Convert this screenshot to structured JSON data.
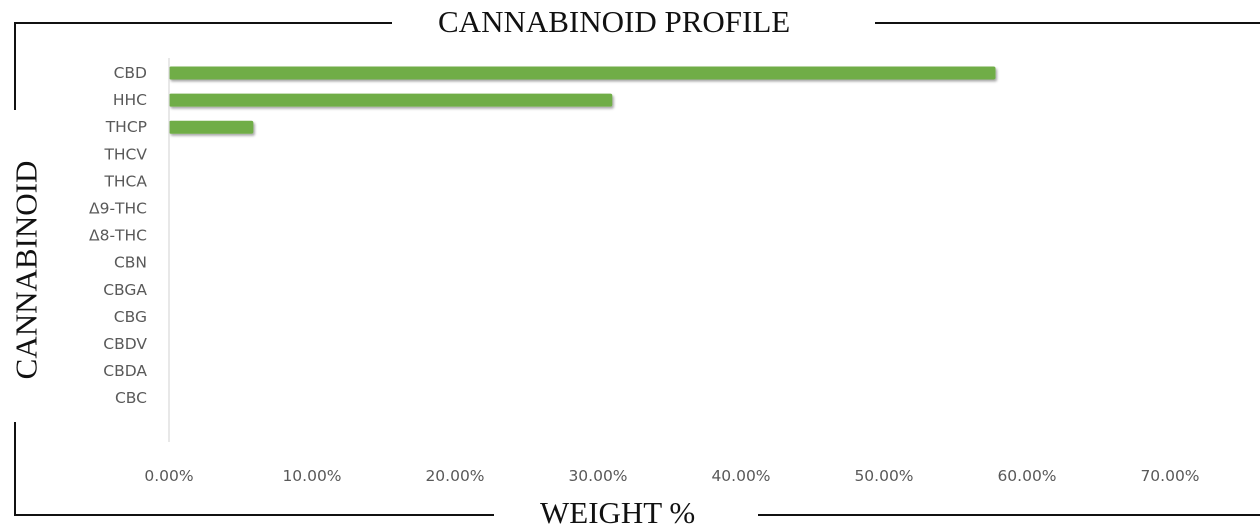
{
  "chart_data": {
    "type": "bar",
    "orientation": "horizontal",
    "title": "CANNABINOID PROFILE",
    "xlabel": "WEIGHT %",
    "ylabel": "CANNABINOID",
    "categories": [
      "CBD",
      "HHC",
      "THCP",
      "THCV",
      "THCA",
      "Δ9-THC",
      "Δ8-THC",
      "CBN",
      "CBGA",
      "CBG",
      "CBDV",
      "CBDA",
      "CBC"
    ],
    "values": [
      57.8,
      31.0,
      5.9,
      0,
      0,
      0,
      0,
      0,
      0,
      0,
      0,
      0,
      0
    ],
    "xlim": [
      0,
      70
    ],
    "xticks": [
      0,
      10,
      20,
      30,
      40,
      50,
      60,
      70
    ],
    "xtick_labels": [
      "0.00%",
      "10.00%",
      "20.00%",
      "30.00%",
      "40.00%",
      "50.00%",
      "60.00%",
      "70.00%"
    ],
    "grid": false,
    "legend": "none",
    "bar_color": "#70ad47",
    "axis_color": "#d9d9d9"
  }
}
